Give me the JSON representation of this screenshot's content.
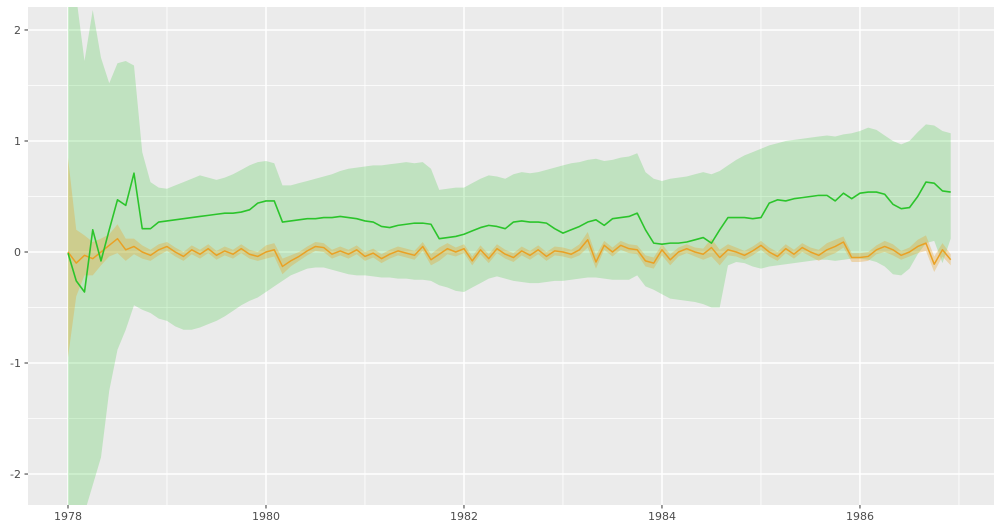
{
  "figure": {
    "kind": "ggplot-style time series with confidence ribbons",
    "panel_background": "#EBEBEB",
    "outer_background": "#FFFFFF",
    "grid_color": "#FFFFFF",
    "tick_mark_color": "#333333",
    "tick_label_color": "#4D4D4D"
  },
  "chart_data": {
    "type": "line",
    "title": "",
    "xlabel": "",
    "ylabel": "",
    "grid": true,
    "legend": "none",
    "x_start_year": 1978,
    "points_per_year": 12,
    "xlim": [
      1977.596,
      1987.354
    ],
    "ylim": [
      -2.279,
      2.207
    ],
    "x_major_ticks": [
      1978,
      1980,
      1982,
      1984,
      1986
    ],
    "x_major_labels": [
      "1978",
      "1980",
      "1982",
      "1984",
      "1986"
    ],
    "x_minor_ticks": [
      1979,
      1981,
      1983,
      1985,
      1987
    ],
    "y_major_ticks": [
      2,
      1,
      0,
      -1,
      -2
    ],
    "y_major_labels": [
      "2",
      "1",
      "0",
      "-1",
      "-2"
    ],
    "y_minor_ticks": [
      1.5,
      0.5,
      -0.5,
      -1.5
    ],
    "series": [
      {
        "name": "green-series",
        "color": "#2BC42B",
        "line_width": 1.6,
        "ribbon_opacity": 0.22,
        "line": [
          -0.01,
          -0.26,
          -0.36,
          0.2,
          -0.08,
          0.2,
          0.47,
          0.42,
          0.71,
          0.21,
          0.21,
          0.27,
          0.28,
          0.29,
          0.3,
          0.31,
          0.32,
          0.33,
          0.34,
          0.35,
          0.35,
          0.36,
          0.38,
          0.44,
          0.46,
          0.46,
          0.27,
          0.28,
          0.29,
          0.3,
          0.3,
          0.31,
          0.31,
          0.32,
          0.31,
          0.3,
          0.28,
          0.27,
          0.23,
          0.22,
          0.24,
          0.25,
          0.26,
          0.26,
          0.25,
          0.12,
          0.13,
          0.14,
          0.16,
          0.19,
          0.22,
          0.24,
          0.23,
          0.21,
          0.27,
          0.28,
          0.27,
          0.27,
          0.26,
          0.21,
          0.17,
          0.2,
          0.23,
          0.27,
          0.29,
          0.24,
          0.3,
          0.31,
          0.32,
          0.35,
          0.2,
          0.08,
          0.07,
          0.08,
          0.08,
          0.09,
          0.11,
          0.13,
          0.08,
          0.2,
          0.31,
          0.31,
          0.31,
          0.3,
          0.31,
          0.44,
          0.47,
          0.46,
          0.48,
          0.49,
          0.5,
          0.51,
          0.51,
          0.46,
          0.53,
          0.48,
          0.53,
          0.54,
          0.54,
          0.52,
          0.43,
          0.39,
          0.4,
          0.5,
          0.63,
          0.62,
          0.55,
          0.54
        ],
        "upper": [
          2.3,
          2.3,
          1.72,
          2.18,
          1.75,
          1.52,
          1.7,
          1.72,
          1.68,
          0.9,
          0.63,
          0.58,
          0.57,
          0.6,
          0.63,
          0.66,
          0.69,
          0.67,
          0.65,
          0.67,
          0.7,
          0.74,
          0.78,
          0.81,
          0.82,
          0.8,
          0.6,
          0.6,
          0.62,
          0.64,
          0.66,
          0.68,
          0.7,
          0.73,
          0.75,
          0.76,
          0.77,
          0.78,
          0.78,
          0.79,
          0.8,
          0.81,
          0.8,
          0.81,
          0.75,
          0.56,
          0.57,
          0.58,
          0.58,
          0.62,
          0.66,
          0.69,
          0.68,
          0.66,
          0.7,
          0.72,
          0.71,
          0.72,
          0.74,
          0.76,
          0.78,
          0.8,
          0.81,
          0.83,
          0.84,
          0.82,
          0.83,
          0.85,
          0.86,
          0.89,
          0.72,
          0.66,
          0.64,
          0.66,
          0.67,
          0.68,
          0.7,
          0.72,
          0.7,
          0.73,
          0.78,
          0.83,
          0.87,
          0.9,
          0.93,
          0.96,
          0.98,
          1.0,
          1.01,
          1.02,
          1.03,
          1.04,
          1.05,
          1.04,
          1.06,
          1.07,
          1.09,
          1.12,
          1.1,
          1.05,
          1.0,
          0.97,
          1.0,
          1.08,
          1.15,
          1.14,
          1.09,
          1.07
        ],
        "lower": [
          -2.35,
          -2.35,
          -2.35,
          -2.1,
          -1.85,
          -1.25,
          -0.88,
          -0.7,
          -0.48,
          -0.52,
          -0.55,
          -0.6,
          -0.62,
          -0.67,
          -0.7,
          -0.7,
          -0.68,
          -0.65,
          -0.62,
          -0.58,
          -0.53,
          -0.48,
          -0.44,
          -0.41,
          -0.36,
          -0.31,
          -0.26,
          -0.21,
          -0.18,
          -0.15,
          -0.14,
          -0.14,
          -0.16,
          -0.18,
          -0.2,
          -0.21,
          -0.21,
          -0.22,
          -0.23,
          -0.23,
          -0.24,
          -0.24,
          -0.25,
          -0.25,
          -0.26,
          -0.3,
          -0.32,
          -0.35,
          -0.36,
          -0.32,
          -0.28,
          -0.24,
          -0.22,
          -0.24,
          -0.26,
          -0.27,
          -0.28,
          -0.28,
          -0.27,
          -0.26,
          -0.26,
          -0.25,
          -0.24,
          -0.23,
          -0.23,
          -0.24,
          -0.25,
          -0.25,
          -0.25,
          -0.21,
          -0.31,
          -0.34,
          -0.38,
          -0.42,
          -0.43,
          -0.44,
          -0.45,
          -0.47,
          -0.5,
          -0.5,
          -0.12,
          -0.09,
          -0.1,
          -0.13,
          -0.15,
          -0.13,
          -0.12,
          -0.11,
          -0.1,
          -0.09,
          -0.08,
          -0.07,
          -0.07,
          -0.08,
          -0.07,
          -0.06,
          -0.06,
          -0.07,
          -0.09,
          -0.13,
          -0.2,
          -0.21,
          -0.15,
          -0.02,
          0.08,
          0.1,
          -0.1,
          0.12
        ]
      },
      {
        "name": "orange-series",
        "color": "#E9A125",
        "line_width": 1.5,
        "ribbon_opacity": 0.32,
        "line": [
          0.0,
          -0.1,
          -0.03,
          -0.06,
          0.0,
          0.06,
          0.12,
          0.02,
          0.05,
          0.0,
          -0.03,
          0.02,
          0.05,
          0.0,
          -0.04,
          0.02,
          -0.02,
          0.03,
          -0.03,
          0.01,
          -0.02,
          0.03,
          -0.02,
          -0.04,
          0.0,
          0.02,
          -0.13,
          -0.08,
          -0.04,
          0.01,
          0.05,
          0.04,
          -0.02,
          0.01,
          -0.02,
          0.02,
          -0.04,
          -0.01,
          -0.06,
          -0.02,
          0.01,
          -0.01,
          -0.03,
          0.05,
          -0.07,
          -0.02,
          0.03,
          0.0,
          0.03,
          -0.08,
          0.02,
          -0.06,
          0.03,
          -0.02,
          -0.05,
          0.01,
          -0.03,
          0.02,
          -0.04,
          0.01,
          0.0,
          -0.02,
          0.02,
          0.11,
          -0.09,
          0.06,
          0.0,
          0.06,
          0.03,
          0.02,
          -0.08,
          -0.1,
          0.02,
          -0.07,
          0.0,
          0.03,
          0.0,
          -0.02,
          0.04,
          -0.05,
          0.02,
          0.0,
          -0.03,
          0.01,
          0.06,
          0.0,
          -0.04,
          0.03,
          -0.02,
          0.04,
          0.0,
          -0.03,
          0.02,
          0.05,
          0.09,
          -0.05,
          -0.05,
          -0.04,
          0.02,
          0.05,
          0.02,
          -0.03,
          0.0,
          0.05,
          0.08,
          -0.11,
          0.02,
          -0.07
        ],
        "upper": [
          0.85,
          0.2,
          0.15,
          0.09,
          0.12,
          0.16,
          0.25,
          0.12,
          0.12,
          0.06,
          0.02,
          0.07,
          0.09,
          0.04,
          0.0,
          0.06,
          0.02,
          0.07,
          0.01,
          0.05,
          0.02,
          0.07,
          0.02,
          0.0,
          0.06,
          0.08,
          -0.06,
          -0.03,
          0.0,
          0.05,
          0.09,
          0.08,
          0.02,
          0.05,
          0.02,
          0.06,
          0.0,
          0.03,
          -0.02,
          0.02,
          0.05,
          0.03,
          0.01,
          0.09,
          -0.02,
          0.04,
          0.08,
          0.04,
          0.07,
          -0.04,
          0.06,
          -0.02,
          0.07,
          0.02,
          -0.01,
          0.05,
          0.01,
          0.06,
          0.0,
          0.05,
          0.04,
          0.02,
          0.07,
          0.18,
          -0.03,
          0.1,
          0.04,
          0.1,
          0.07,
          0.06,
          -0.03,
          -0.05,
          0.07,
          -0.02,
          0.04,
          0.07,
          0.04,
          0.03,
          0.12,
          0.02,
          0.07,
          0.04,
          0.01,
          0.05,
          0.1,
          0.04,
          0.0,
          0.07,
          0.02,
          0.08,
          0.04,
          0.02,
          0.08,
          0.11,
          0.14,
          -0.01,
          -0.01,
          0.0,
          0.06,
          0.1,
          0.07,
          0.01,
          0.04,
          0.11,
          0.15,
          -0.04,
          0.08,
          -0.02
        ],
        "lower": [
          -0.95,
          -0.4,
          -0.21,
          -0.21,
          -0.12,
          -0.04,
          -0.01,
          -0.08,
          -0.02,
          -0.06,
          -0.08,
          -0.03,
          0.01,
          -0.04,
          -0.08,
          -0.02,
          -0.06,
          -0.01,
          -0.07,
          -0.03,
          -0.06,
          -0.01,
          -0.06,
          -0.08,
          -0.06,
          -0.04,
          -0.2,
          -0.13,
          -0.08,
          -0.03,
          0.01,
          0.0,
          -0.06,
          -0.03,
          -0.06,
          -0.02,
          -0.08,
          -0.05,
          -0.1,
          -0.06,
          -0.03,
          -0.05,
          -0.07,
          0.01,
          -0.12,
          -0.08,
          -0.02,
          -0.04,
          -0.01,
          -0.12,
          -0.02,
          -0.1,
          -0.01,
          -0.06,
          -0.09,
          -0.03,
          -0.07,
          -0.02,
          -0.08,
          -0.03,
          -0.04,
          -0.06,
          -0.03,
          0.04,
          -0.15,
          0.02,
          -0.04,
          0.02,
          -0.01,
          -0.02,
          -0.13,
          -0.15,
          -0.03,
          -0.12,
          -0.04,
          -0.01,
          -0.04,
          -0.07,
          -0.04,
          -0.12,
          -0.03,
          -0.04,
          -0.07,
          -0.03,
          0.02,
          -0.04,
          -0.08,
          -0.01,
          -0.06,
          0.0,
          -0.04,
          -0.08,
          -0.04,
          -0.01,
          0.04,
          -0.09,
          -0.09,
          -0.08,
          -0.02,
          0.0,
          -0.03,
          -0.07,
          -0.04,
          -0.01,
          0.01,
          -0.18,
          -0.04,
          -0.12
        ]
      }
    ]
  }
}
